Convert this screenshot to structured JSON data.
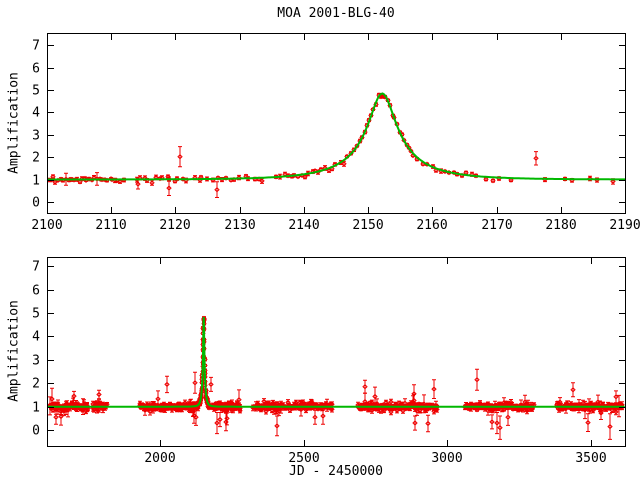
{
  "chart_data": {
    "type": "scatter",
    "title": "MOA 2001-BLG-40",
    "xlabel": "JD - 2450000",
    "ylabel": "Amplification",
    "grid": false,
    "legend": null,
    "colors": {
      "data": "#ee0000",
      "model": "#00b800",
      "axis": "#000000",
      "background": "#ffffff"
    },
    "panels": [
      {
        "id": "top",
        "description": "zoom on microlensing event",
        "x_range": [
          2100,
          2190
        ],
        "y_range": [
          -0.49,
          7.54
        ],
        "x_ticks": [
          2100,
          2110,
          2120,
          2130,
          2140,
          2150,
          2160,
          2170,
          2180,
          2190
        ],
        "y_ticks": [
          0,
          1,
          2,
          3,
          4,
          5,
          6,
          7
        ],
        "px": {
          "left": 47,
          "right": 625,
          "top": 33,
          "bottom": 213
        }
      },
      {
        "id": "bottom",
        "description": "full baseline light curve",
        "x_range": [
          1607,
          3618
        ],
        "y_range": [
          -0.68,
          7.39
        ],
        "x_ticks": [
          2000,
          2500,
          3000,
          3500
        ],
        "y_ticks": [
          0,
          1,
          2,
          3,
          4,
          5,
          6,
          7
        ],
        "px": {
          "left": 47,
          "right": 625,
          "top": 257,
          "bottom": 446
        }
      }
    ],
    "model": {
      "type": "paczynski-point-lens",
      "t0": 2152.2,
      "u0": 0.21,
      "tE": 10.5,
      "baseline_amplification": 1.0,
      "peak_amplification": 4.84
    },
    "data_generation": {
      "seed": 40,
      "marker": "open-diamond",
      "error_bar_caps": true,
      "windows": [
        [
          1615,
          1750,
          100,
          0.04,
          0.13,
          0.06
        ],
        [
          1765,
          1815,
          28,
          0.05,
          0.14,
          0.05
        ],
        [
          1930,
          2096,
          150,
          0.04,
          0.12,
          0.06
        ],
        [
          2100,
          2112,
          30,
          0.04,
          0.1,
          0.02
        ],
        [
          2113.5,
          2122,
          14,
          0.05,
          0.12,
          0.0
        ],
        [
          2122.5,
          2134,
          16,
          0.05,
          0.12,
          0.04
        ],
        [
          2135.5,
          2147.5,
          22,
          0.05,
          0.11,
          0.0
        ],
        [
          2147.8,
          2157.2,
          26,
          0.04,
          0.08,
          0.0
        ],
        [
          2157.5,
          2167,
          14,
          0.05,
          0.1,
          0.0
        ],
        [
          2190,
          2280,
          80,
          0.05,
          0.13,
          0.07
        ],
        [
          2325,
          2600,
          170,
          0.04,
          0.12,
          0.06
        ],
        [
          2690,
          2965,
          210,
          0.04,
          0.12,
          0.06
        ],
        [
          3062,
          3300,
          150,
          0.04,
          0.12,
          0.06
        ],
        [
          3380,
          3608,
          140,
          0.04,
          0.13,
          0.07
        ]
      ],
      "outliers": [
        [
          1640,
          0.55,
          0.3
        ],
        [
          1700,
          1.45,
          0.2
        ],
        [
          1789,
          1.52,
          0.18
        ],
        [
          2024,
          1.95,
          0.35
        ],
        [
          2114.2,
          0.8,
          0.22
        ],
        [
          2119.0,
          0.62,
          0.33
        ],
        [
          2120.7,
          2.02,
          0.45
        ],
        [
          2126.5,
          0.55,
          0.35
        ],
        [
          2168.3,
          1.02,
          0.07
        ],
        [
          2169.5,
          0.95,
          0.06
        ],
        [
          2170.4,
          1.05,
          0.08
        ],
        [
          2172.2,
          0.98,
          0.07
        ],
        [
          2176.2,
          1.95,
          0.3
        ],
        [
          2177.5,
          1.0,
          0.09
        ],
        [
          2180.6,
          1.03,
          0.07
        ],
        [
          2181.8,
          0.97,
          0.08
        ],
        [
          2184.5,
          1.05,
          0.1
        ],
        [
          2185.6,
          0.98,
          0.09
        ],
        [
          2188.2,
          0.92,
          0.12
        ],
        [
          2198,
          0.3,
          0.45
        ],
        [
          2210,
          0.45,
          0.3
        ],
        [
          2232,
          0.5,
          0.28
        ],
        [
          2408,
          0.18,
          0.42
        ],
        [
          2540,
          0.55,
          0.3
        ],
        [
          2568,
          0.6,
          0.35
        ],
        [
          2714,
          1.85,
          0.28
        ],
        [
          2888,
          0.3,
          0.3
        ],
        [
          2933,
          0.28,
          0.35
        ],
        [
          2952,
          1.75,
          0.4
        ],
        [
          3103,
          2.15,
          0.45
        ],
        [
          3155,
          0.35,
          0.3
        ],
        [
          3172,
          0.3,
          0.45
        ],
        [
          3183,
          0.1,
          0.5
        ],
        [
          3210,
          0.55,
          0.35
        ],
        [
          3438,
          1.72,
          0.3
        ],
        [
          3490,
          0.32,
          0.38
        ],
        [
          3566,
          0.15,
          0.55
        ]
      ]
    }
  }
}
